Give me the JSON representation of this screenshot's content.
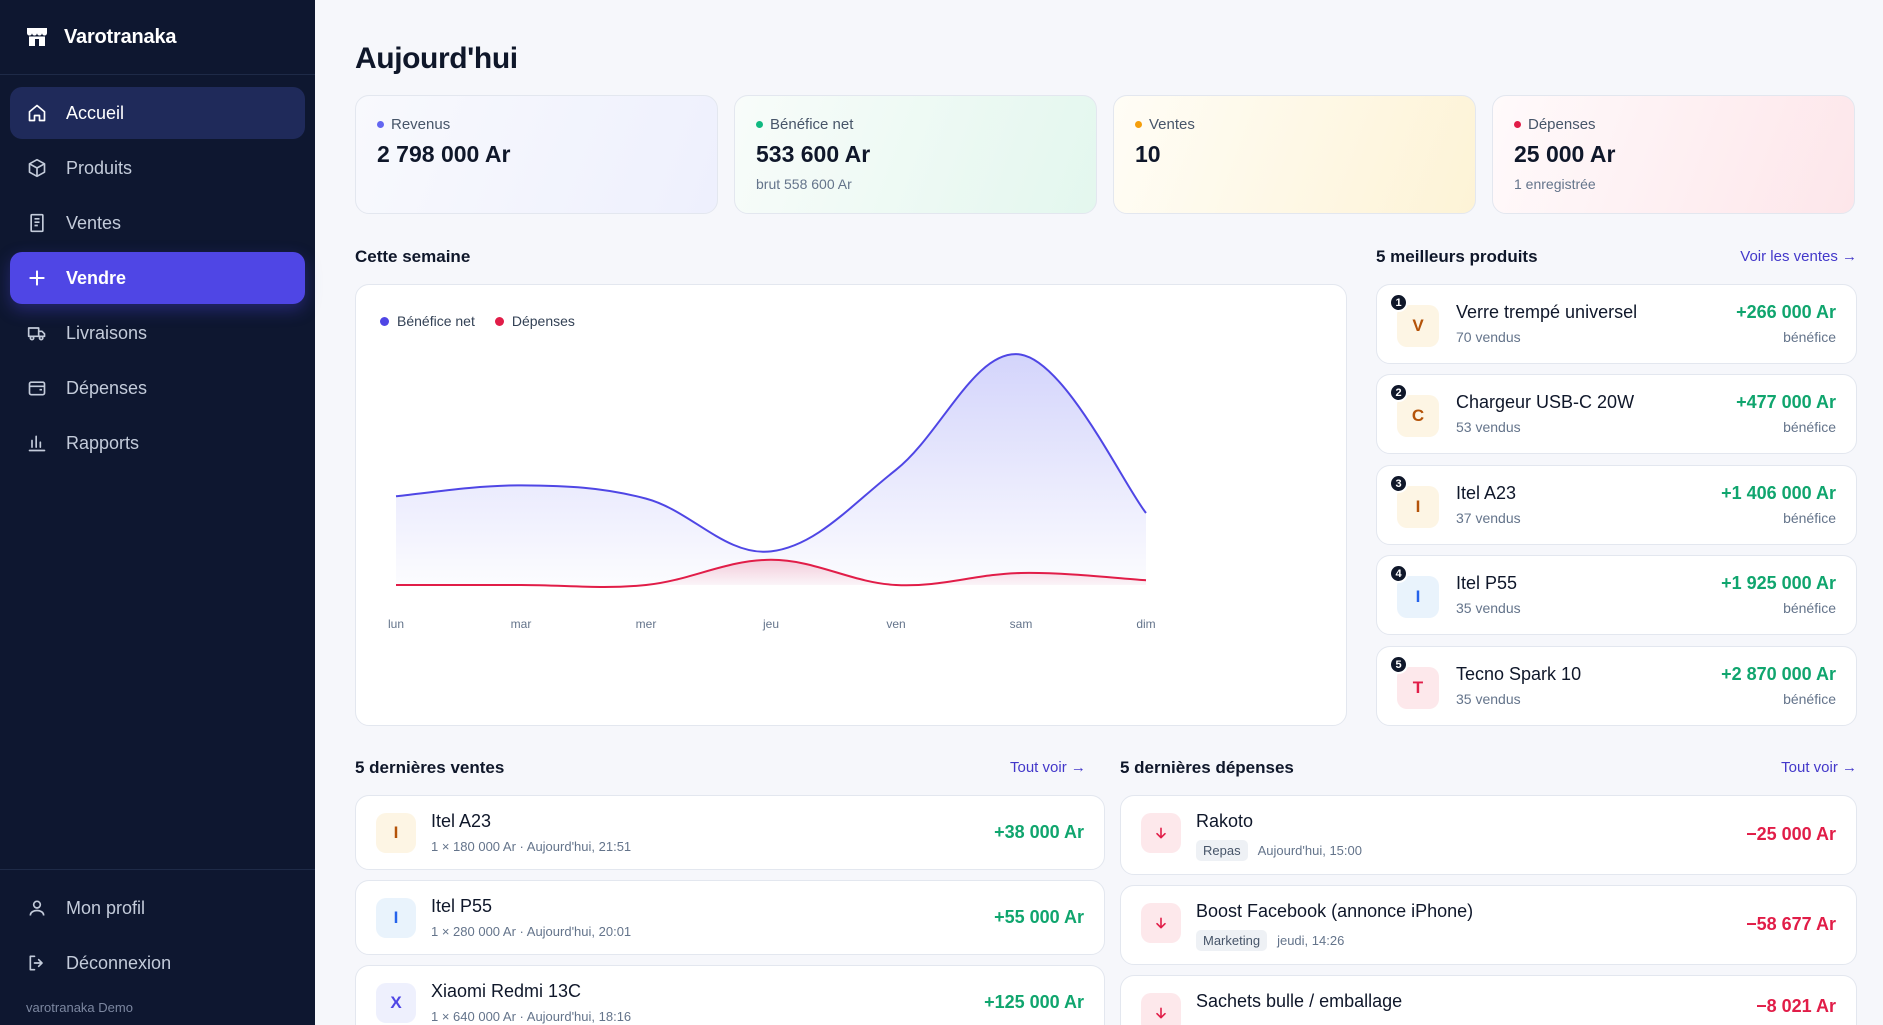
{
  "app": {
    "name": "Varotranaka"
  },
  "sidebar": {
    "items": [
      {
        "label": "Accueil",
        "icon": "home-icon"
      },
      {
        "label": "Produits",
        "icon": "box-icon"
      },
      {
        "label": "Ventes",
        "icon": "receipt-icon"
      },
      {
        "label": "Vendre",
        "icon": "plus-icon"
      },
      {
        "label": "Livraisons",
        "icon": "truck-icon"
      },
      {
        "label": "Dépenses",
        "icon": "wallet-icon"
      },
      {
        "label": "Rapports",
        "icon": "bar-chart-icon"
      }
    ],
    "bottom": [
      {
        "label": "Mon profil",
        "icon": "user-icon"
      },
      {
        "label": "Déconnexion",
        "icon": "logout-icon"
      }
    ],
    "footer": "varotranaka Demo"
  },
  "page": {
    "title": "Aujourd'hui"
  },
  "stats": [
    {
      "label": "Revenus",
      "value": "2 798 000 Ar",
      "sub": "",
      "color": "#6366f1"
    },
    {
      "label": "Bénéfice net",
      "value": "533 600 Ar",
      "sub": "brut 558 600 Ar",
      "color": "#10b981"
    },
    {
      "label": "Ventes",
      "value": "10",
      "sub": "",
      "color": "#f59e0b"
    },
    {
      "label": "Dépenses",
      "value": "25 000 Ar",
      "sub": "1 enregistrée",
      "color": "#e11d48"
    }
  ],
  "week": {
    "title": "Cette semaine"
  },
  "chart_data": {
    "type": "area",
    "categories": [
      "lun",
      "mar",
      "mer",
      "jeu",
      "ven",
      "sam",
      "dim"
    ],
    "series": [
      {
        "name": "Bénéfice net",
        "color": "#4f46e5",
        "values": [
          370000,
          415000,
          360000,
          140000,
          480000,
          960000,
          300000
        ]
      },
      {
        "name": "Dépenses",
        "color": "#e11d48",
        "values": [
          0,
          0,
          0,
          105000,
          0,
          50000,
          20000
        ]
      }
    ],
    "ylim": [
      0,
      1000000
    ],
    "grid": false,
    "legend": "top-left"
  },
  "top_products": {
    "title": "5 meilleurs produits",
    "link": "Voir les ventes →",
    "items": [
      {
        "rank": "1",
        "initial": "V",
        "name": "Verre trempé universel",
        "sold": "70 vendus",
        "profit": "+266 000 Ar",
        "profit_label": "bénéfice"
      },
      {
        "rank": "2",
        "initial": "C",
        "name": "Chargeur USB-C 20W",
        "sold": "53 vendus",
        "profit": "+477 000 Ar",
        "profit_label": "bénéfice"
      },
      {
        "rank": "3",
        "initial": "I",
        "name": "Itel A23",
        "sold": "37 vendus",
        "profit": "+1 406 000 Ar",
        "profit_label": "bénéfice"
      },
      {
        "rank": "4",
        "initial": "I",
        "name": "Itel P55",
        "sold": "35 vendus",
        "profit": "+1 925 000 Ar",
        "profit_label": "bénéfice"
      },
      {
        "rank": "5",
        "initial": "T",
        "name": "Tecno Spark 10",
        "sold": "35 vendus",
        "profit": "+2 870 000 Ar",
        "profit_label": "bénéfice"
      }
    ]
  },
  "recent_sales": {
    "title": "5 dernières ventes",
    "link": "Tout voir →",
    "items": [
      {
        "initial": "I",
        "name": "Itel A23",
        "detail": "1 × 180 000 Ar · Aujourd'hui, 21:51",
        "amount": "+38 000 Ar"
      },
      {
        "initial": "I",
        "name": "Itel P55",
        "detail": "1 × 280 000 Ar · Aujourd'hui, 20:01",
        "amount": "+55 000 Ar"
      },
      {
        "initial": "X",
        "name": "Xiaomi Redmi 13C",
        "detail": "1 × 640 000 Ar · Aujourd'hui, 18:16",
        "amount": "+125 000 Ar"
      }
    ]
  },
  "recent_expenses": {
    "title": "5 dernières dépenses",
    "link": "Tout voir →",
    "items": [
      {
        "name": "Rakoto",
        "tag": "Repas",
        "date": "Aujourd'hui, 15:00",
        "amount": "−25 000 Ar"
      },
      {
        "name": "Boost Facebook (annonce iPhone)",
        "tag": "Marketing",
        "date": "jeudi, 14:26",
        "amount": "−58 677 Ar"
      },
      {
        "name": "Sachets bulle / emballage",
        "tag": "",
        "date": "",
        "amount": "−8 021 Ar"
      }
    ]
  }
}
